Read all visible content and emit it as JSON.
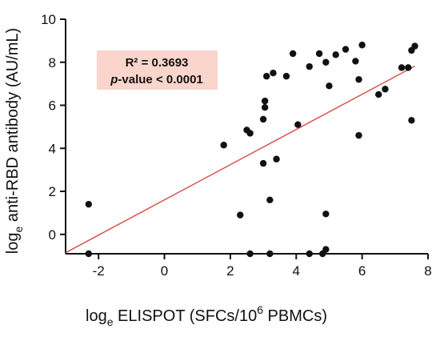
{
  "chart_data": {
    "type": "scatter",
    "xlabel": {
      "base": "log",
      "sub": "e",
      "main": " ELISPOT (SFCs/10",
      "sup": "6",
      "tail": " PBMCs)"
    },
    "ylabel": {
      "base": "log",
      "sub": "e",
      "main": " anti-RBD antibody (AU/mL)"
    },
    "xlim": [
      -3,
      8
    ],
    "ylim": [
      -0.9,
      10
    ],
    "xticks": [
      -2,
      0,
      2,
      4,
      6,
      8
    ],
    "yticks": [
      0,
      2,
      4,
      6,
      8,
      10
    ],
    "grid": false,
    "annotation": {
      "r2_label": "R² = 0.3693",
      "p_label_italic": "p",
      "p_label_rest": "-value < 0.0001",
      "box_color": "#f9d5cc"
    },
    "regression": {
      "x": [
        -3,
        7.6
      ],
      "y": [
        -0.85,
        7.82
      ],
      "color": "#d9534f"
    },
    "point_color": "#111111",
    "points": [
      {
        "x": -2.3,
        "y": 1.4
      },
      {
        "x": -2.3,
        "y": -0.9
      },
      {
        "x": 1.8,
        "y": 4.15
      },
      {
        "x": 2.3,
        "y": 0.9
      },
      {
        "x": 2.5,
        "y": 4.85
      },
      {
        "x": 2.6,
        "y": 4.7
      },
      {
        "x": 2.6,
        "y": -0.9
      },
      {
        "x": 3.0,
        "y": 5.35
      },
      {
        "x": 3.0,
        "y": 3.3
      },
      {
        "x": 3.05,
        "y": 5.9
      },
      {
        "x": 3.05,
        "y": 6.2
      },
      {
        "x": 3.1,
        "y": 7.35
      },
      {
        "x": 3.2,
        "y": 1.6
      },
      {
        "x": 3.2,
        "y": -0.9
      },
      {
        "x": 3.3,
        "y": 7.5
      },
      {
        "x": 3.4,
        "y": 3.5
      },
      {
        "x": 3.7,
        "y": 7.35
      },
      {
        "x": 3.9,
        "y": 8.4
      },
      {
        "x": 4.05,
        "y": 5.1
      },
      {
        "x": 4.4,
        "y": 7.8
      },
      {
        "x": 4.4,
        "y": -0.9
      },
      {
        "x": 4.7,
        "y": 8.4
      },
      {
        "x": 4.8,
        "y": -0.9
      },
      {
        "x": 4.9,
        "y": 8.0
      },
      {
        "x": 4.9,
        "y": 0.95
      },
      {
        "x": 4.9,
        "y": -0.7
      },
      {
        "x": 5.0,
        "y": 6.9
      },
      {
        "x": 5.2,
        "y": 8.35
      },
      {
        "x": 5.5,
        "y": 8.6
      },
      {
        "x": 5.8,
        "y": 8.05
      },
      {
        "x": 5.9,
        "y": 7.2
      },
      {
        "x": 5.9,
        "y": 4.6
      },
      {
        "x": 6.0,
        "y": 8.8
      },
      {
        "x": 6.5,
        "y": 6.5
      },
      {
        "x": 6.7,
        "y": 6.75
      },
      {
        "x": 7.2,
        "y": 7.75
      },
      {
        "x": 7.4,
        "y": 7.75
      },
      {
        "x": 7.5,
        "y": 8.55
      },
      {
        "x": 7.5,
        "y": 5.3
      },
      {
        "x": 7.6,
        "y": 8.75
      }
    ]
  }
}
